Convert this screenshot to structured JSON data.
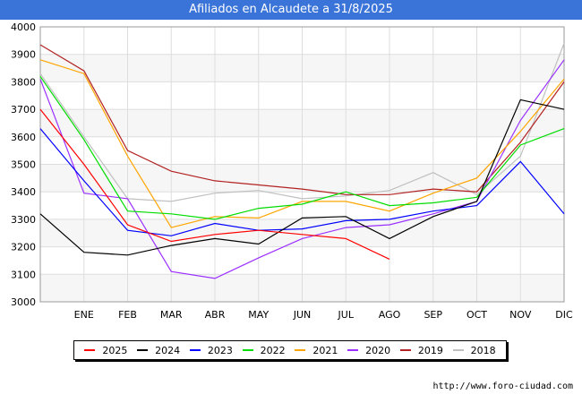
{
  "title": "Afiliados en Alcaudete a 31/8/2025",
  "watermark": "http://www.foro-ciudad.com",
  "background_watermark": "FORO-CIUDAD.COM",
  "chart_data": {
    "type": "line",
    "title": "Afiliados en Alcaudete a 31/8/2025",
    "categories": [
      "",
      "ENE",
      "FEB",
      "MAR",
      "ABR",
      "MAY",
      "JUN",
      "JUL",
      "AGO",
      "SEP",
      "OCT",
      "NOV",
      "DIC"
    ],
    "ylim": [
      3000,
      4000
    ],
    "yticks": [
      3000,
      3100,
      3200,
      3300,
      3400,
      3500,
      3600,
      3700,
      3800,
      3900,
      4000
    ],
    "grid": true,
    "legend_position": "bottom",
    "series": [
      {
        "name": "2025",
        "color": "#ff0000",
        "values": [
          3700,
          3500,
          3280,
          3220,
          3245,
          3260,
          3245,
          3230,
          3155,
          null,
          null,
          null,
          null
        ]
      },
      {
        "name": "2024",
        "color": "#000000",
        "values": [
          3320,
          3180,
          3170,
          3205,
          3230,
          3210,
          3305,
          3310,
          3230,
          3310,
          3365,
          3735,
          3700
        ]
      },
      {
        "name": "2023",
        "color": "#0000ff",
        "values": [
          3630,
          3440,
          3260,
          3240,
          3285,
          3260,
          3265,
          3295,
          3300,
          3330,
          3350,
          3510,
          3320
        ]
      },
      {
        "name": "2022",
        "color": "#00dd00",
        "values": [
          3820,
          3590,
          3330,
          3320,
          3300,
          3340,
          3355,
          3400,
          3350,
          3360,
          3380,
          3570,
          3630
        ]
      },
      {
        "name": "2021",
        "color": "#ffa500",
        "values": [
          3880,
          3830,
          3530,
          3270,
          3310,
          3305,
          3365,
          3365,
          3330,
          3395,
          3450,
          3620,
          3810
        ]
      },
      {
        "name": "2020",
        "color": "#9b30ff",
        "values": [
          3810,
          3395,
          3375,
          3110,
          3085,
          3160,
          3230,
          3270,
          3280,
          3320,
          3365,
          3660,
          3880
        ]
      },
      {
        "name": "2019",
        "color": "#b22222",
        "values": [
          3935,
          3840,
          3550,
          3475,
          3440,
          3425,
          3410,
          3390,
          3390,
          3410,
          3400,
          3580,
          3800
        ]
      },
      {
        "name": "2018",
        "color": "#c0c0c0",
        "values": [
          3830,
          3600,
          3375,
          3365,
          3395,
          3405,
          3375,
          3385,
          3405,
          3470,
          3390,
          3530,
          3940
        ]
      }
    ]
  }
}
